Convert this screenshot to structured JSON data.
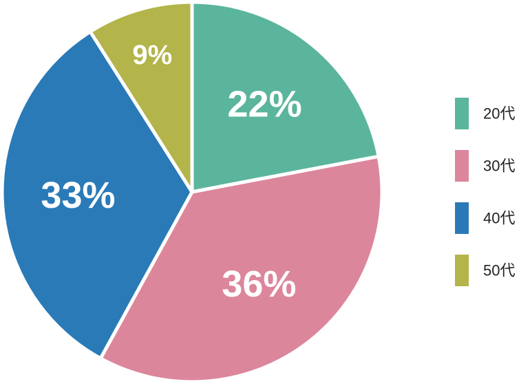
{
  "chart_data": {
    "type": "pie",
    "categories": [
      "20代",
      "30代",
      "40代",
      "50代"
    ],
    "values": [
      22,
      36,
      33,
      9
    ],
    "value_labels": [
      "22%",
      "36%",
      "33%",
      "9%"
    ],
    "colors": [
      "#5bb59c",
      "#dc869c",
      "#2a7ab8",
      "#b3b44a"
    ],
    "legend": "right"
  }
}
